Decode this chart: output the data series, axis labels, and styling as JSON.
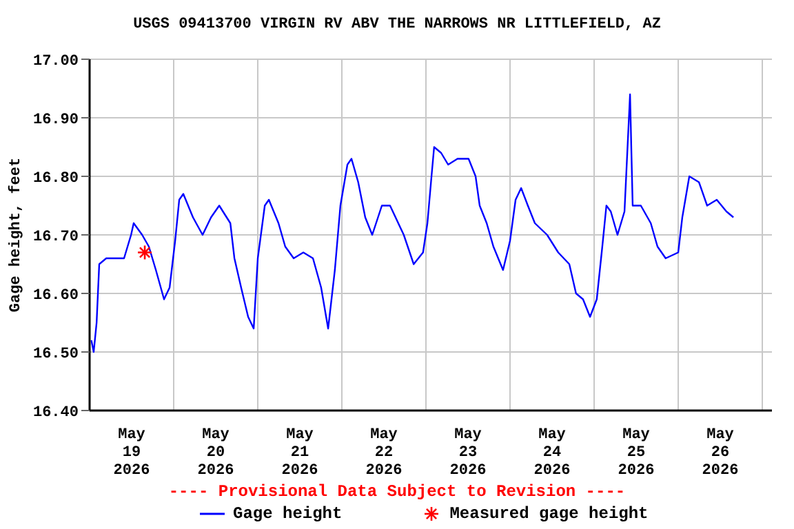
{
  "chart_data": {
    "type": "line",
    "title": "USGS 09413700 VIRGIN RV ABV THE NARROWS NR LITTLEFIELD, AZ",
    "ylabel": "Gage height, feet",
    "annotations": [
      "---- Provisional Data Subject to Revision ----"
    ],
    "xlim": [
      "2026-05-19T00:00",
      "2026-05-27T02:45"
    ],
    "xticks": [
      {
        "value": "2026-05-19T00:00",
        "label": null
      },
      {
        "value": "2026-05-19T12:00",
        "label": "May\n19\n2026"
      },
      {
        "value": "2026-05-20T00:00",
        "label": null
      },
      {
        "value": "2026-05-20T12:00",
        "label": "May\n20\n2026"
      },
      {
        "value": "2026-05-21T00:00",
        "label": null
      },
      {
        "value": "2026-05-21T12:00",
        "label": "May\n21\n2026"
      },
      {
        "value": "2026-05-22T00:00",
        "label": null
      },
      {
        "value": "2026-05-22T12:00",
        "label": "May\n22\n2026"
      },
      {
        "value": "2026-05-23T00:00",
        "label": null
      },
      {
        "value": "2026-05-23T12:00",
        "label": "May\n23\n2026"
      },
      {
        "value": "2026-05-24T00:00",
        "label": null
      },
      {
        "value": "2026-05-24T12:00",
        "label": "May\n24\n2026"
      },
      {
        "value": "2026-05-25T00:00",
        "label": null
      },
      {
        "value": "2026-05-25T12:00",
        "label": "May\n25\n2026"
      },
      {
        "value": "2026-05-26T00:00",
        "label": null
      },
      {
        "value": "2026-05-26T12:00",
        "label": "May\n26\n2026"
      },
      {
        "value": "2026-05-27T00:00",
        "label": null
      }
    ],
    "ylim": [
      16.4,
      17.0
    ],
    "yticks": [
      {
        "value": 16.4,
        "label": "16.40"
      },
      {
        "value": 16.5,
        "label": "16.50"
      },
      {
        "value": 16.6,
        "label": "16.60"
      },
      {
        "value": 16.7,
        "label": "16.70"
      },
      {
        "value": 16.8,
        "label": "16.80"
      },
      {
        "value": 16.9,
        "label": "16.90"
      },
      {
        "value": 17.0,
        "label": "17.00"
      }
    ],
    "grid": true,
    "legend": "bottom",
    "series": [
      {
        "name": "Gage height",
        "color": "#0000ff",
        "marker": "none",
        "line_style": "solid",
        "x": [
          "2026-05-19T00:30",
          "2026-05-19T01:10",
          "2026-05-19T02:00",
          "2026-05-19T02:45",
          "2026-05-19T04:45",
          "2026-05-19T09:50",
          "2026-05-19T11:50",
          "2026-05-19T12:35",
          "2026-05-19T15:00",
          "2026-05-19T16:55",
          "2026-05-19T18:55",
          "2026-05-19T21:15",
          "2026-05-19T22:50",
          "2026-05-20T00:25",
          "2026-05-20T01:35",
          "2026-05-20T02:45",
          "2026-05-20T05:30",
          "2026-05-20T08:15",
          "2026-05-20T10:40",
          "2026-05-20T13:00",
          "2026-05-20T16:10",
          "2026-05-20T17:20",
          "2026-05-20T19:15",
          "2026-05-20T21:15",
          "2026-05-20T22:50",
          "2026-05-21T00:00",
          "2026-05-21T02:00",
          "2026-05-21T03:10",
          "2026-05-21T05:55",
          "2026-05-21T07:50",
          "2026-05-21T10:15",
          "2026-05-21T13:00",
          "2026-05-21T15:45",
          "2026-05-21T18:05",
          "2026-05-21T20:05",
          "2026-05-21T22:00",
          "2026-05-21T23:35",
          "2026-05-22T01:35",
          "2026-05-22T02:45",
          "2026-05-22T04:40",
          "2026-05-22T06:40",
          "2026-05-22T08:40",
          "2026-05-22T11:25",
          "2026-05-22T13:45",
          "2026-05-22T17:40",
          "2026-05-22T20:30",
          "2026-05-22T23:10",
          "2026-05-23T00:25",
          "2026-05-23T01:35",
          "2026-05-23T02:20",
          "2026-05-23T04:20",
          "2026-05-23T06:20",
          "2026-05-23T09:00",
          "2026-05-23T12:10",
          "2026-05-23T14:10",
          "2026-05-23T15:20",
          "2026-05-23T17:20",
          "2026-05-23T19:15",
          "2026-05-23T22:00",
          "2026-05-24T00:00",
          "2026-05-24T01:35",
          "2026-05-24T03:10",
          "2026-05-24T05:05",
          "2026-05-24T07:05",
          "2026-05-24T10:35",
          "2026-05-24T13:45",
          "2026-05-24T16:55",
          "2026-05-24T18:50",
          "2026-05-24T20:50",
          "2026-05-24T22:50",
          "2026-05-25T00:45",
          "2026-05-25T02:20",
          "2026-05-25T03:30",
          "2026-05-25T04:45",
          "2026-05-25T06:40",
          "2026-05-25T08:40",
          "2026-05-25T10:15",
          "2026-05-25T11:00",
          "2026-05-25T13:20",
          "2026-05-25T16:10",
          "2026-05-25T18:05",
          "2026-05-25T20:25",
          "2026-05-26T00:00",
          "2026-05-26T01:10",
          "2026-05-26T03:10",
          "2026-05-26T05:55",
          "2026-05-26T08:15",
          "2026-05-26T11:00",
          "2026-05-26T13:45",
          "2026-05-26T15:45"
        ],
        "values": [
          16.52,
          16.5,
          16.55,
          16.65,
          16.66,
          16.66,
          16.7,
          16.72,
          16.7,
          16.68,
          16.64,
          16.59,
          16.61,
          16.69,
          16.76,
          16.77,
          16.73,
          16.7,
          16.73,
          16.75,
          16.72,
          16.66,
          16.61,
          16.56,
          16.54,
          16.66,
          16.75,
          16.76,
          16.72,
          16.68,
          16.66,
          16.67,
          16.66,
          16.61,
          16.54,
          16.64,
          16.75,
          16.82,
          16.83,
          16.79,
          16.73,
          16.7,
          16.75,
          16.75,
          16.7,
          16.65,
          16.67,
          16.72,
          16.8,
          16.85,
          16.84,
          16.82,
          16.83,
          16.83,
          16.8,
          16.75,
          16.72,
          16.68,
          16.64,
          16.69,
          16.76,
          16.78,
          16.75,
          16.72,
          16.7,
          16.67,
          16.65,
          16.6,
          16.59,
          16.56,
          16.59,
          16.68,
          16.75,
          16.74,
          16.7,
          16.74,
          16.94,
          16.75,
          16.75,
          16.72,
          16.68,
          16.66,
          16.67,
          16.73,
          16.8,
          16.79,
          16.75,
          16.76,
          16.74,
          16.73
        ]
      },
      {
        "name": "Measured gage height",
        "type": "scatter",
        "color": "#ff0000",
        "marker": "cross",
        "x": [
          "2026-05-19T15:45"
        ],
        "values": [
          16.67
        ]
      }
    ]
  }
}
